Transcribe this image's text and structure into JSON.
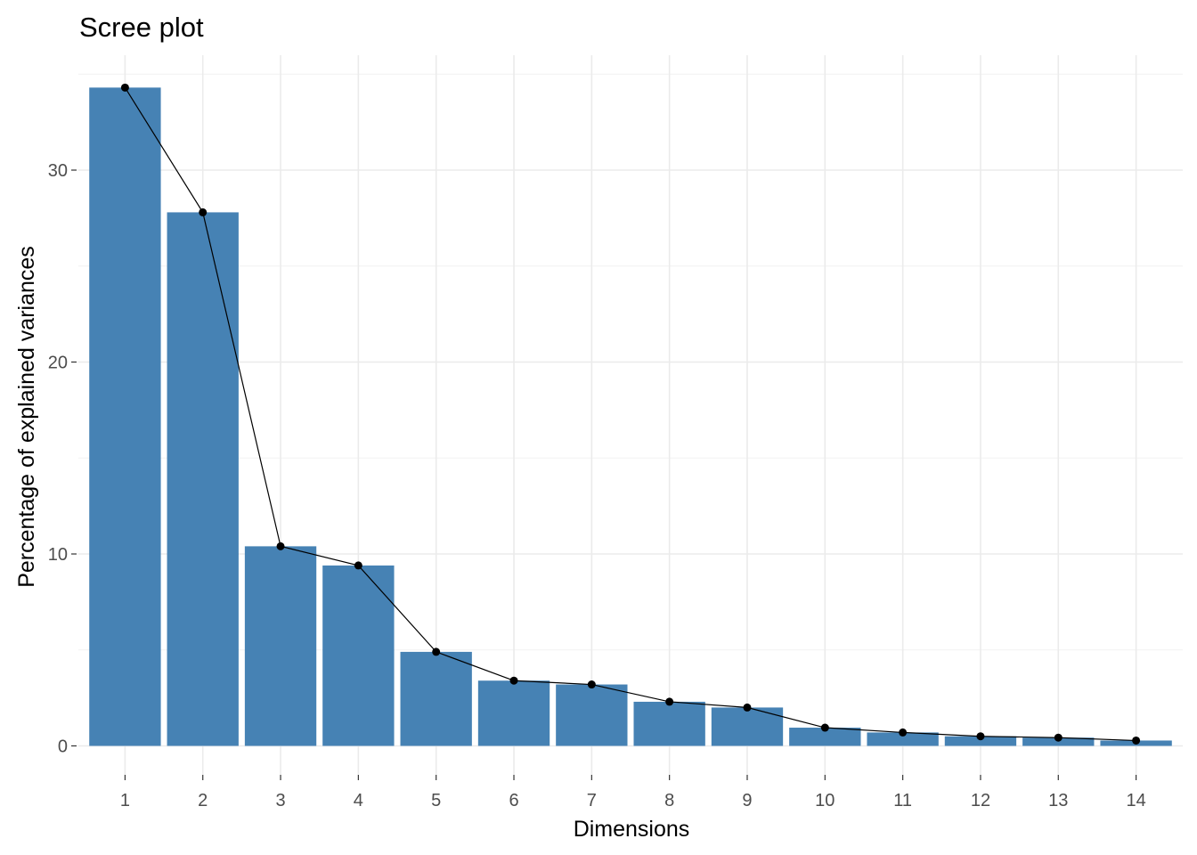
{
  "chart_data": {
    "type": "bar",
    "title": "Scree plot",
    "xlabel": "Dimensions",
    "ylabel": "Percentage of explained variances",
    "categories": [
      "1",
      "2",
      "3",
      "4",
      "5",
      "6",
      "7",
      "8",
      "9",
      "10",
      "11",
      "12",
      "13",
      "14"
    ],
    "values": [
      34.3,
      27.8,
      10.4,
      9.4,
      4.9,
      3.4,
      3.2,
      2.3,
      2.0,
      0.95,
      0.7,
      0.5,
      0.43,
      0.28
    ],
    "overlay": "line-with-points",
    "ylim": [
      0,
      35
    ],
    "yticks": [
      0,
      10,
      20,
      30
    ],
    "grid": true,
    "bar_color": "#4682b4",
    "line_color": "#000000"
  }
}
